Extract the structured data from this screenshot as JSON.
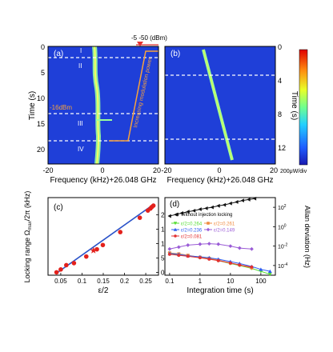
{
  "panel_a": {
    "label": "(a)",
    "modulation_power_label": "-5  -50 (dBm)",
    "region_labels": [
      "I",
      "II",
      "III",
      "IV"
    ],
    "arrow_label": "Increasing modulation power",
    "marker_label": "-16dBm",
    "ylabel": "Time (s)",
    "yticks": [
      "0",
      "5",
      "10",
      "15",
      "20"
    ],
    "xticks": [
      "-20",
      "0",
      "20"
    ],
    "xlabel": "Frequency (kHz)+26.048 GHz"
  },
  "panel_b": {
    "label": "(b)",
    "ylabel": "Time (s)",
    "yticks": [
      "0",
      "4",
      "8",
      "12"
    ],
    "xticks": [
      "-20",
      "0",
      "20"
    ],
    "xlabel": "Frequency (kHz)+26.048 GHz",
    "colorbar_label": "200μW/div"
  },
  "panel_c": {
    "label": "(c)",
    "ylabel": "Locking range Ω",
    "ylabel_sub": "max",
    "ylabel_tail": "/2π (kHz)",
    "xlabel": "ε/2",
    "xticks": [
      "0.05",
      "0.1",
      "0.15",
      "0.2",
      "0.25"
    ],
    "yticks": [
      "0",
      "5",
      "10",
      "15",
      "20"
    ]
  },
  "panel_d": {
    "label": "(d)",
    "ylabel": "Allan deviation (Hz)",
    "xlabel": "Integration time (s)",
    "xticks": [
      "0.1",
      "1",
      "10",
      "100"
    ],
    "ytick_base": "10",
    "yticks_exp": [
      "2",
      "0",
      "-2",
      "-4"
    ],
    "legend_top": "Without injection locking",
    "legend": [
      "ε/2=0.264",
      "ε/2=0.261",
      "ε/2=0.236",
      "ε/2=0.149",
      "ε/2=0.081"
    ]
  },
  "colors": {
    "map_background": "#1f3fd8",
    "trace": "#9bff9b",
    "dashed": "#ffffff",
    "arrow": "#f7a23c",
    "fit_line": "#2a52c9",
    "points": "#e3211c",
    "allan_black": "#111111",
    "allan_green": "#55dd33",
    "allan_orange": "#f08a3e",
    "allan_blue": "#2d5cf0",
    "allan_purple": "#9a5bd6",
    "allan_red": "#e33030"
  },
  "chart_data": [
    {
      "type": "scatter",
      "panel": "(c)",
      "xlabel": "ε/2",
      "ylabel": "Locking range Ω_max/2π (kHz)",
      "xlim": [
        0.02,
        0.28
      ],
      "ylim": [
        -1,
        26
      ],
      "points": [
        {
          "x": 0.04,
          "y": 0.0
        },
        {
          "x": 0.05,
          "y": 1.0
        },
        {
          "x": 0.063,
          "y": 2.5
        },
        {
          "x": 0.081,
          "y": 3.2
        },
        {
          "x": 0.11,
          "y": 5.5
        },
        {
          "x": 0.135,
          "y": 8.0
        },
        {
          "x": 0.149,
          "y": 9.5
        },
        {
          "x": 0.19,
          "y": 14.0
        },
        {
          "x": 0.236,
          "y": 19.0
        },
        {
          "x": 0.255,
          "y": 21.5
        },
        {
          "x": 0.261,
          "y": 22.2
        },
        {
          "x": 0.264,
          "y": 22.7
        },
        {
          "x": 0.268,
          "y": 23.2
        }
      ],
      "highlight_point": {
        "x": 0.127,
        "y": 7.6
      },
      "fit": [
        {
          "x": 0.04,
          "y": -0.3
        },
        {
          "x": 0.27,
          "y": 23.8
        }
      ]
    },
    {
      "type": "line",
      "panel": "(d)",
      "xlabel": "Integration time (s)",
      "ylabel": "Allan deviation (Hz)",
      "xscale": "log",
      "yscale": "log",
      "xlim": [
        0.07,
        300
      ],
      "ylim_log10": [
        -5,
        3
      ],
      "series": [
        {
          "name": "Without injection locking",
          "x": [
            0.1,
            0.16,
            0.25,
            0.4,
            0.63,
            1,
            1.6,
            2.5,
            4,
            6.3,
            10,
            16,
            25,
            40,
            63
          ],
          "log10y": [
            1.1,
            1.25,
            1.4,
            1.55,
            1.65,
            1.8,
            1.9,
            2.0,
            2.15,
            2.25,
            2.4,
            2.55,
            2.7,
            2.8,
            2.9
          ]
        },
        {
          "name": "ε/2=0.264",
          "x": [
            0.1,
            0.2,
            0.4,
            1,
            2,
            4,
            10,
            20,
            50,
            100,
            200
          ],
          "log10y": [
            -2.8,
            -2.9,
            -3.0,
            -3.2,
            -3.3,
            -3.5,
            -3.8,
            -4.0,
            -4.3,
            -4.6,
            -4.9
          ]
        },
        {
          "name": "ε/2=0.261",
          "x": [
            0.1,
            0.2,
            0.4,
            1,
            2,
            4,
            10,
            20,
            50
          ],
          "log10y": [
            -2.7,
            -2.8,
            -2.95,
            -3.15,
            -3.25,
            -3.45,
            -3.75,
            -3.95,
            -4.25
          ]
        },
        {
          "name": "ε/2=0.236",
          "x": [
            0.1,
            0.2,
            0.4,
            1,
            2,
            4,
            10,
            20,
            50,
            100,
            200
          ],
          "log10y": [
            -2.75,
            -2.85,
            -3.0,
            -3.1,
            -3.2,
            -3.35,
            -3.6,
            -3.8,
            -4.1,
            -4.4,
            -4.6
          ]
        },
        {
          "name": "ε/2=0.149",
          "x": [
            0.1,
            0.2,
            0.4,
            1,
            2,
            4,
            10,
            20,
            50
          ],
          "log10y": [
            -2.3,
            -2.1,
            -1.9,
            -1.8,
            -1.75,
            -1.8,
            -2.0,
            -2.2,
            -2.3
          ]
        },
        {
          "name": "ε/2=0.081",
          "x": [
            0.1,
            0.2,
            0.4,
            1,
            2,
            4,
            10,
            20,
            50
          ],
          "log10y": [
            -2.85,
            -2.95,
            -3.05,
            -3.2,
            -3.35,
            -3.5,
            -3.75,
            -3.95,
            -4.15
          ]
        }
      ]
    }
  ]
}
